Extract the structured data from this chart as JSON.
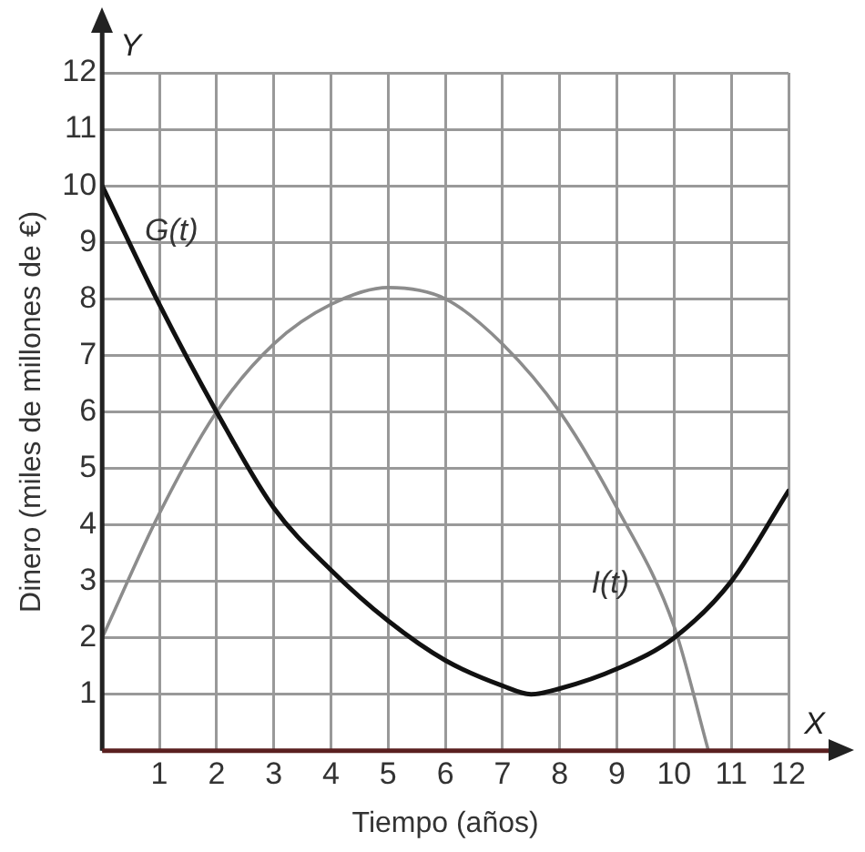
{
  "chart_data": {
    "type": "line",
    "xlabel": "Tiempo (años)",
    "ylabel": "Dinero (miles de millones de €)",
    "annotations": [
      "X",
      "Y"
    ],
    "xlim": [
      0,
      12
    ],
    "ylim": [
      0,
      12
    ],
    "xticks": [
      {
        "value": 0,
        "label": null
      },
      1,
      2,
      3,
      4,
      5,
      6,
      7,
      8,
      9,
      10,
      11,
      12
    ],
    "yticks": [
      {
        "value": 0,
        "label": null
      },
      1,
      2,
      3,
      4,
      5,
      6,
      7,
      8,
      9,
      10,
      11,
      12
    ],
    "grid": true,
    "legend": false,
    "marker": "none",
    "line_style": "solid",
    "series": [
      {
        "name": "G(t)",
        "color": "#111111",
        "x": [
          0,
          1,
          2,
          3,
          4,
          5,
          6,
          7,
          7.5,
          8,
          9,
          10,
          11,
          12
        ],
        "values": [
          10,
          7.9,
          6,
          4.3,
          3.2,
          2.3,
          1.6,
          1.15,
          1,
          1.1,
          1.45,
          2,
          3,
          4.6
        ]
      },
      {
        "name": "I(t)",
        "color": "#8c8c8c",
        "x": [
          0,
          1,
          2,
          3,
          4,
          5,
          6,
          7,
          8,
          9,
          10,
          10.6
        ],
        "values": [
          2,
          4.2,
          6,
          7.2,
          7.9,
          8.2,
          8,
          7.2,
          6,
          4.3,
          2.2,
          0
        ]
      }
    ]
  }
}
